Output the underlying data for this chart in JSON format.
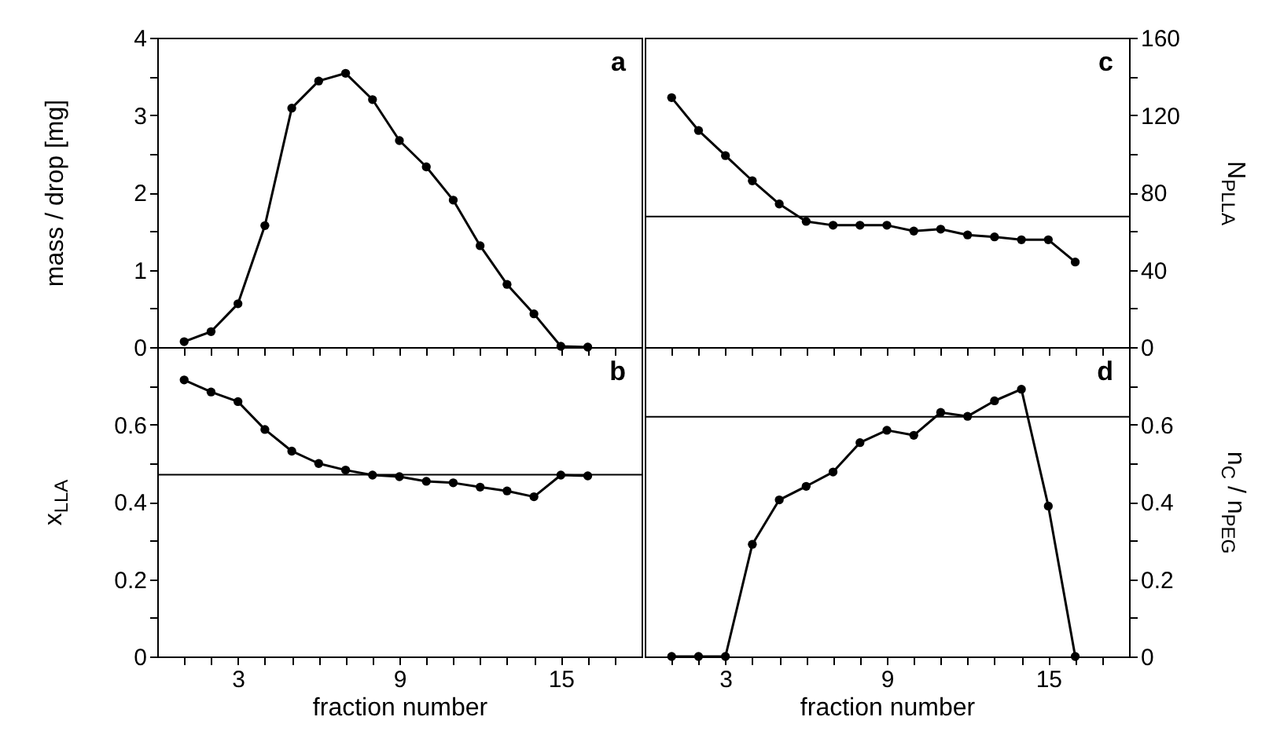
{
  "chart_data": [
    {
      "type": "line",
      "ylabel": "mass / drop [mg]",
      "annotations": [
        "a"
      ],
      "marker": "circle",
      "tick_labels": "y",
      "xlim": [
        0,
        18
      ],
      "xticks": [
        {
          "value": 1,
          "label": null
        },
        {
          "value": 2,
          "label": null
        },
        {
          "value": 3,
          "label": null
        },
        {
          "value": 4,
          "label": null
        },
        {
          "value": 5,
          "label": null
        },
        {
          "value": 6,
          "label": null
        },
        {
          "value": 7,
          "label": null
        },
        {
          "value": 8,
          "label": null
        },
        {
          "value": 9,
          "label": null
        },
        {
          "value": 10,
          "label": null
        },
        {
          "value": 11,
          "label": null
        },
        {
          "value": 12,
          "label": null
        },
        {
          "value": 13,
          "label": null
        },
        {
          "value": 14,
          "label": null
        },
        {
          "value": 15,
          "label": null
        },
        {
          "value": 16,
          "label": null
        },
        {
          "value": 17,
          "label": null
        }
      ],
      "ylim": [
        0,
        4
      ],
      "yticks": [
        0,
        {
          "value": 0.5,
          "label": null
        },
        1,
        {
          "value": 1.5,
          "label": null
        },
        2,
        {
          "value": 2.5,
          "label": null
        },
        3,
        {
          "value": 3.5,
          "label": null
        },
        4
      ],
      "x": [
        1,
        2,
        3,
        4,
        5,
        6,
        7,
        8,
        9,
        10,
        11,
        12,
        13,
        14,
        15,
        16
      ],
      "series": [
        {
          "color": "#000000",
          "values": [
            0.07,
            0.2,
            0.56,
            1.57,
            3.09,
            3.44,
            3.54,
            3.2,
            2.67,
            2.33,
            1.9,
            1.31,
            0.81,
            0.43,
            0.01,
            0
          ]
        }
      ]
    },
    {
      "type": "line",
      "y2label": "N$_{PLLA}$",
      "annotations": [
        "c"
      ],
      "marker": "circle",
      "tick_labels": "y",
      "xlim": [
        0,
        18
      ],
      "xticks": [
        {
          "value": 1,
          "label": null
        },
        {
          "value": 2,
          "label": null
        },
        {
          "value": 3,
          "label": null
        },
        {
          "value": 4,
          "label": null
        },
        {
          "value": 5,
          "label": null
        },
        {
          "value": 6,
          "label": null
        },
        {
          "value": 7,
          "label": null
        },
        {
          "value": 8,
          "label": null
        },
        {
          "value": 9,
          "label": null
        },
        {
          "value": 10,
          "label": null
        },
        {
          "value": 11,
          "label": null
        },
        {
          "value": 12,
          "label": null
        },
        {
          "value": 13,
          "label": null
        },
        {
          "value": 14,
          "label": null
        },
        {
          "value": 15,
          "label": null
        },
        {
          "value": 16,
          "label": null
        },
        {
          "value": 17,
          "label": null
        }
      ],
      "y2lim": [
        0,
        160
      ],
      "y2ticks": [
        0,
        {
          "value": 20,
          "label": null
        },
        40,
        {
          "value": 60,
          "label": null
        },
        80,
        {
          "value": 100,
          "label": null
        },
        120,
        {
          "value": 140,
          "label": null
        },
        160
      ],
      "ref_lines": [
        {
          "axis": "y2",
          "value": 67.5
        }
      ],
      "x": [
        1,
        2,
        3,
        4,
        5,
        6,
        7,
        8,
        9,
        10,
        11,
        12,
        13,
        14,
        15,
        16
      ],
      "series": [
        {
          "color": "#000000",
          "axis": "y2",
          "values": [
            129,
            112,
            99,
            86,
            74,
            65,
            63,
            63,
            63,
            60,
            61,
            58,
            57,
            55.5,
            55.5,
            44
          ]
        }
      ]
    },
    {
      "type": "line",
      "xlabel": "fraction number",
      "ylabel": "x$_{LLA}$",
      "annotations": [
        "b"
      ],
      "marker": "circle",
      "xlim": [
        0,
        18
      ],
      "xticks": [
        {
          "value": 1,
          "label": null
        },
        {
          "value": 2,
          "label": null
        },
        3,
        {
          "value": 4,
          "label": null
        },
        {
          "value": 5,
          "label": null
        },
        {
          "value": 6,
          "label": null
        },
        {
          "value": 7,
          "label": null
        },
        {
          "value": 8,
          "label": null
        },
        9,
        {
          "value": 10,
          "label": null
        },
        {
          "value": 11,
          "label": null
        },
        {
          "value": 12,
          "label": null
        },
        {
          "value": 13,
          "label": null
        },
        {
          "value": 14,
          "label": null
        },
        15,
        {
          "value": 16,
          "label": null
        },
        {
          "value": 17,
          "label": null
        }
      ],
      "ylim": [
        0,
        0.8
      ],
      "yticks": [
        0,
        {
          "value": 0.1,
          "label": null
        },
        0.2,
        {
          "value": 0.3,
          "label": null
        },
        0.4,
        {
          "value": 0.5,
          "label": null
        },
        0.6,
        {
          "value": 0.7,
          "label": null
        }
      ],
      "ref_lines": [
        {
          "axis": "y",
          "value": 0.47
        }
      ],
      "x": [
        1,
        2,
        3,
        4,
        5,
        6,
        7,
        8,
        9,
        10,
        11,
        12,
        13,
        14,
        15,
        16
      ],
      "series": [
        {
          "color": "#000000",
          "values": [
            0.715,
            0.684,
            0.659,
            0.587,
            0.531,
            0.499,
            0.482,
            0.469,
            0.465,
            0.453,
            0.449,
            0.438,
            0.428,
            0.413,
            0.469,
            0.467
          ]
        }
      ]
    },
    {
      "type": "line",
      "xlabel": "fraction number",
      "y2label": "n$_{C}$ / n$_{PEG}$",
      "annotations": [
        "d"
      ],
      "marker": "circle",
      "xlim": [
        0,
        18
      ],
      "xticks": [
        {
          "value": 1,
          "label": null
        },
        {
          "value": 2,
          "label": null
        },
        3,
        {
          "value": 4,
          "label": null
        },
        {
          "value": 5,
          "label": null
        },
        {
          "value": 6,
          "label": null
        },
        {
          "value": 7,
          "label": null
        },
        {
          "value": 8,
          "label": null
        },
        9,
        {
          "value": 10,
          "label": null
        },
        {
          "value": 11,
          "label": null
        },
        {
          "value": 12,
          "label": null
        },
        {
          "value": 13,
          "label": null
        },
        {
          "value": 14,
          "label": null
        },
        15,
        {
          "value": 16,
          "label": null
        },
        {
          "value": 17,
          "label": null
        }
      ],
      "y2lim": [
        0,
        0.8
      ],
      "y2ticks": [
        0,
        {
          "value": 0.1,
          "label": null
        },
        0.2,
        {
          "value": 0.3,
          "label": null
        },
        0.4,
        {
          "value": 0.5,
          "label": null
        },
        0.6,
        {
          "value": 0.7,
          "label": null
        }
      ],
      "ref_lines": [
        {
          "axis": "y2",
          "value": 0.62
        }
      ],
      "x": [
        1,
        2,
        3,
        4,
        5,
        6,
        7,
        8,
        9,
        10,
        11,
        12,
        13,
        14,
        15,
        16
      ],
      "series": [
        {
          "color": "#000000",
          "axis": "y2",
          "values": [
            0,
            0,
            0,
            0.29,
            0.405,
            0.44,
            0.477,
            0.553,
            0.585,
            0.572,
            0.631,
            0.621,
            0.661,
            0.691,
            0.389,
            0
          ]
        }
      ]
    }
  ]
}
